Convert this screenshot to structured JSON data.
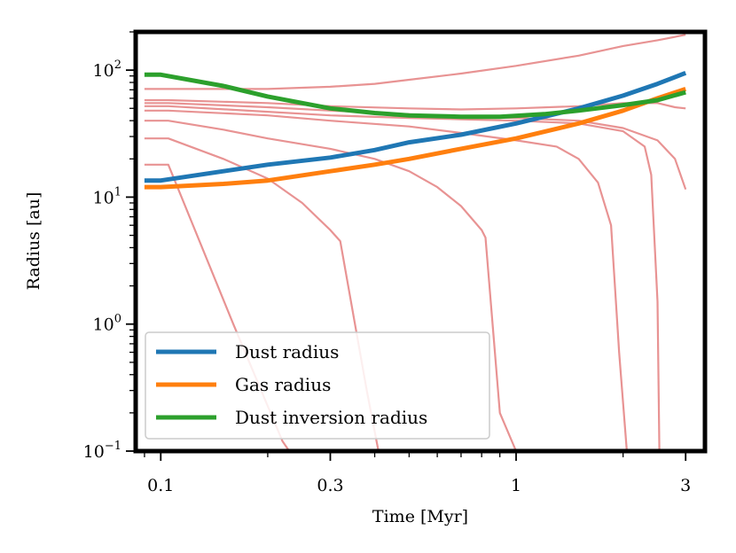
{
  "chart_data": {
    "type": "line",
    "title": "",
    "xlabel": "Time [Myr]",
    "ylabel": "Radius [au]",
    "xscale": "log",
    "yscale": "log",
    "xlim": [
      0.085,
      3.4
    ],
    "ylim": [
      0.1,
      200
    ],
    "xticks": [
      {
        "value": 0.1,
        "label": "0.1"
      },
      {
        "value": 0.3,
        "label": "0.3"
      },
      {
        "value": 1,
        "label": "1"
      },
      {
        "value": 3,
        "label": "3"
      }
    ],
    "yticks": [
      {
        "value": 0.1,
        "base": "10",
        "exp": "−1"
      },
      {
        "value": 1,
        "base": "10",
        "exp": "0"
      },
      {
        "value": 10,
        "base": "10",
        "exp": "1"
      },
      {
        "value": 100,
        "base": "10",
        "exp": "2"
      }
    ],
    "legend": {
      "position": "lower-left",
      "entries": [
        "Dust radius",
        "Gas radius",
        "Dust inversion radius"
      ]
    },
    "series": [
      {
        "name": "Dust radius",
        "color": "#1f77b4",
        "role": "main",
        "x": [
          0.09,
          0.1,
          0.15,
          0.2,
          0.3,
          0.4,
          0.5,
          0.7,
          1.0,
          1.5,
          2.0,
          2.5,
          3.0
        ],
        "y": [
          13.5,
          13.5,
          16,
          18,
          20.5,
          23.5,
          27,
          31,
          38,
          50,
          63,
          78,
          95
        ]
      },
      {
        "name": "Gas radius",
        "color": "#ff7f0e",
        "role": "main",
        "x": [
          0.09,
          0.1,
          0.15,
          0.2,
          0.3,
          0.4,
          0.5,
          0.7,
          1.0,
          1.5,
          2.0,
          2.5,
          3.0
        ],
        "y": [
          12,
          12,
          12.7,
          13.5,
          16,
          18,
          20,
          24,
          29,
          38,
          48,
          60,
          71
        ]
      },
      {
        "name": "Dust inversion radius",
        "color": "#2ca02c",
        "role": "main",
        "x": [
          0.09,
          0.1,
          0.15,
          0.2,
          0.3,
          0.4,
          0.5,
          0.7,
          0.9,
          1.2,
          1.5,
          2.0,
          2.5,
          3.0
        ],
        "y": [
          92,
          92,
          75,
          62,
          50,
          46,
          44,
          43,
          43,
          45,
          48,
          53,
          58,
          67
        ]
      },
      {
        "name": "trace-1",
        "color": "#e89393",
        "role": "trace",
        "x": [
          0.09,
          0.105,
          0.16,
          0.22,
          0.23
        ],
        "y": [
          18,
          18,
          1.0,
          0.12,
          0.1
        ]
      },
      {
        "name": "trace-2",
        "color": "#e89393",
        "role": "trace",
        "x": [
          0.09,
          0.105,
          0.15,
          0.2,
          0.25,
          0.3,
          0.32,
          0.38,
          0.41
        ],
        "y": [
          29,
          29,
          20,
          14,
          9,
          5.5,
          4.5,
          0.3,
          0.1
        ]
      },
      {
        "name": "trace-3",
        "color": "#e89393",
        "role": "trace",
        "x": [
          0.09,
          0.105,
          0.15,
          0.2,
          0.3,
          0.4,
          0.5,
          0.6,
          0.7,
          0.8,
          0.82,
          0.9,
          1.0
        ],
        "y": [
          40,
          40,
          34,
          29,
          24,
          20,
          16,
          12,
          8.5,
          5.5,
          4.8,
          0.2,
          0.1
        ]
      },
      {
        "name": "trace-4",
        "color": "#e89393",
        "role": "trace",
        "x": [
          0.09,
          0.105,
          0.2,
          0.3,
          0.5,
          0.7,
          1.0,
          1.3,
          1.5,
          1.7,
          1.85,
          1.95,
          2.05
        ],
        "y": [
          48,
          48,
          44,
          40,
          36,
          32,
          28,
          25,
          20,
          13,
          6,
          0.6,
          0.1
        ]
      },
      {
        "name": "trace-5",
        "color": "#e89393",
        "role": "trace",
        "x": [
          0.09,
          0.105,
          0.2,
          0.3,
          0.5,
          0.7,
          1.0,
          1.5,
          2.0,
          2.3,
          2.4,
          2.5,
          2.53
        ],
        "y": [
          52,
          52,
          47,
          44,
          42,
          41,
          40,
          38,
          33,
          25,
          15,
          1.5,
          0.1
        ]
      },
      {
        "name": "trace-6",
        "color": "#e89393",
        "role": "trace",
        "x": [
          0.09,
          0.105,
          0.2,
          0.3,
          0.5,
          0.7,
          1.0,
          1.5,
          2.0,
          2.5,
          2.8,
          3.0
        ],
        "y": [
          55,
          55,
          51,
          48,
          45,
          43,
          42,
          40,
          35,
          28,
          20,
          11.5
        ]
      },
      {
        "name": "trace-7",
        "color": "#e89393",
        "role": "trace",
        "x": [
          0.09,
          0.105,
          0.2,
          0.3,
          0.5,
          0.7,
          1.0,
          1.5,
          2.0,
          2.5,
          2.8,
          3.0
        ],
        "y": [
          58,
          58,
          55,
          52,
          50,
          49,
          50,
          52,
          55,
          55,
          51,
          50
        ]
      },
      {
        "name": "trace-8",
        "color": "#e89393",
        "role": "trace",
        "x": [
          0.09,
          0.105,
          0.2,
          0.3,
          0.4,
          0.5,
          0.7,
          1.0,
          1.5,
          2.0,
          2.5,
          3.0
        ],
        "y": [
          71,
          71,
          71,
          74,
          78,
          84,
          94,
          108,
          130,
          155,
          172,
          190
        ]
      }
    ]
  }
}
